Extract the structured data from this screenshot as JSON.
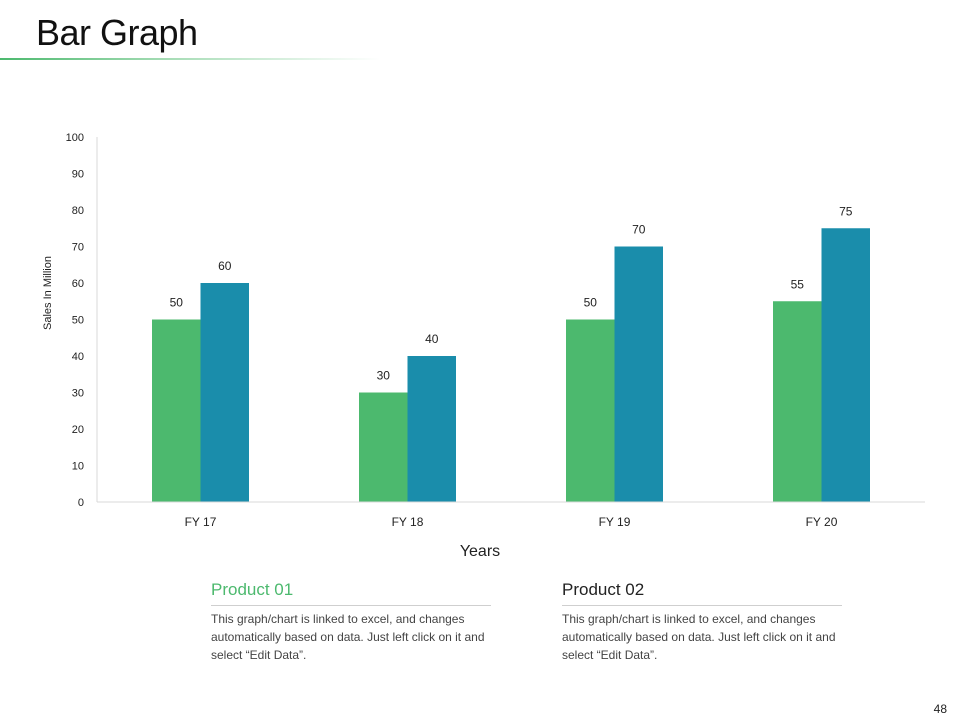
{
  "slide": {
    "title": "Bar Graph",
    "page_number": "48"
  },
  "legend": [
    {
      "heading": "Product 01",
      "description": "This graph/chart is linked to excel, and changes automatically based on data. Just left click on it and select “Edit Data”."
    },
    {
      "heading": "Product 02",
      "description": "This graph/chart is linked to excel, and changes automatically based on data. Just left click on it and select “Edit Data”."
    }
  ],
  "chart_data": {
    "type": "bar",
    "title": "",
    "xlabel": "Years",
    "ylabel": "Sales In Million",
    "categories": [
      "FY 17",
      "FY 18",
      "FY 19",
      "FY 20"
    ],
    "series": [
      {
        "name": "Product 01",
        "values": [
          50,
          30,
          50,
          55
        ],
        "color": "#4cb96e"
      },
      {
        "name": "Product 02",
        "values": [
          60,
          40,
          70,
          75
        ],
        "color": "#1a8dab"
      }
    ],
    "ylim": [
      0,
      100
    ],
    "yticks": [
      0,
      10,
      20,
      30,
      40,
      50,
      60,
      70,
      80,
      90,
      100
    ],
    "grid": false,
    "data_labels": true
  }
}
